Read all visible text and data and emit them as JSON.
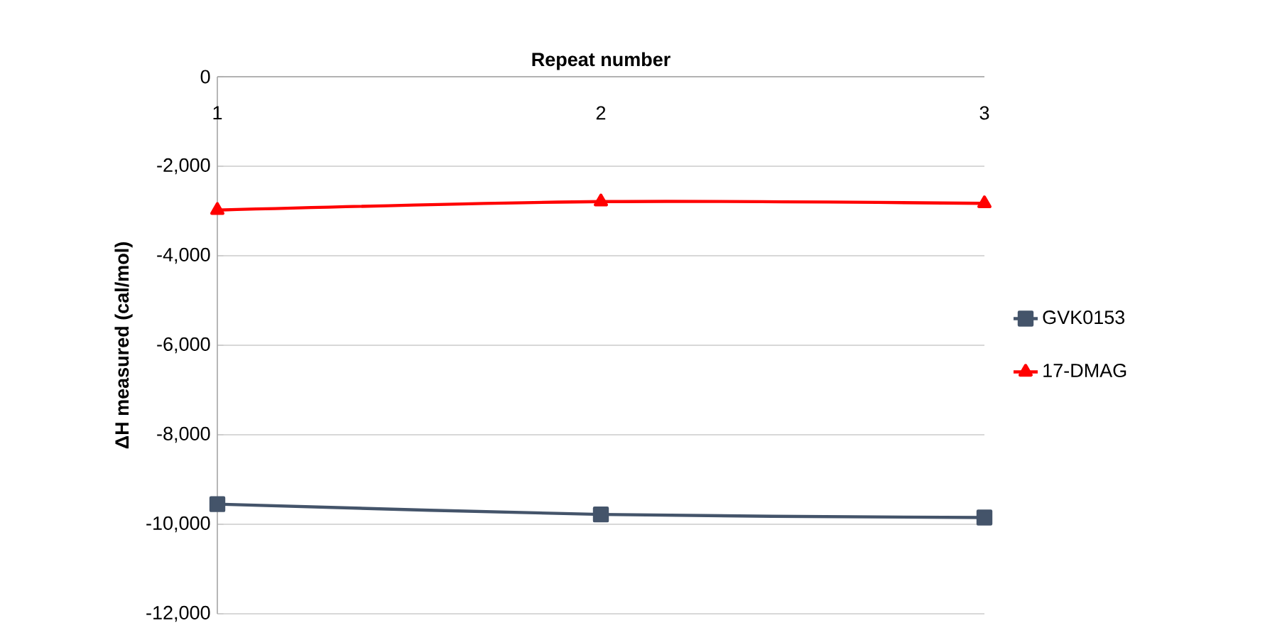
{
  "chart_data": {
    "type": "line",
    "xlabel": "Repeat number",
    "ylabel": "ΔH measured (cal/mol)",
    "categories": [
      "1",
      "2",
      "3"
    ],
    "ylim": [
      -12000,
      0
    ],
    "yticks": [
      {
        "value": -12000,
        "label": "-12,000"
      },
      {
        "value": -10000,
        "label": "-10,000"
      },
      {
        "value": -8000,
        "label": "-8,000"
      },
      {
        "value": -6000,
        "label": "-6,000"
      },
      {
        "value": -4000,
        "label": "-4,000"
      },
      {
        "value": -2000,
        "label": "-2,000"
      },
      0
    ],
    "grid": "y",
    "legend": "right",
    "series": [
      {
        "name": "GVK0153",
        "color": "#44546a",
        "marker": "square",
        "values": [
          -9550,
          -9780,
          -9850
        ]
      },
      {
        "name": "17-DMAG",
        "color": "#ff0000",
        "marker": "triangle",
        "values": [
          -2980,
          -2790,
          -2830
        ]
      }
    ]
  }
}
